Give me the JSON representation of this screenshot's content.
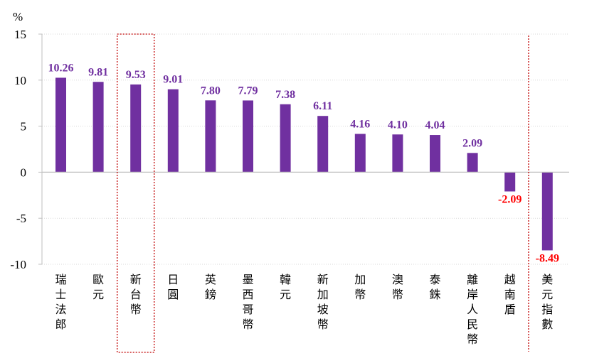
{
  "chart_data": {
    "type": "bar",
    "unit": "%",
    "categories": [
      "瑞士法郎",
      "歐元",
      "新台幣",
      "日圓",
      "英鎊",
      "墨西哥幣",
      "韓元",
      "新加坡幣",
      "加幣",
      "澳幣",
      "泰銖",
      "離岸人民幣",
      "越南盾",
      "美元指數"
    ],
    "values": [
      10.26,
      9.81,
      9.53,
      9.01,
      7.8,
      7.79,
      7.38,
      6.11,
      4.16,
      4.1,
      4.04,
      2.09,
      -2.09,
      -8.49
    ],
    "value_labels": [
      "10.26",
      "9.81",
      "9.53",
      "9.01",
      "7.80",
      "7.79",
      "7.38",
      "6.11",
      "4.16",
      "4.10",
      "4.04",
      "2.09",
      "-2.09",
      "-8.49"
    ],
    "yticks": [
      "15",
      "10",
      "5",
      "0",
      "-5",
      "-10"
    ],
    "ylim": [
      -10,
      15
    ],
    "grid": true,
    "colors": {
      "bar": "#7030A0",
      "positive_label": "#7030A0",
      "negative_label": "#FF0000",
      "highlight": "#C00000",
      "grid": "#D9D9D9",
      "axis": "#BFBFBF"
    },
    "highlight_box_category": "新台幣",
    "separator_before_category": "美元指數"
  }
}
